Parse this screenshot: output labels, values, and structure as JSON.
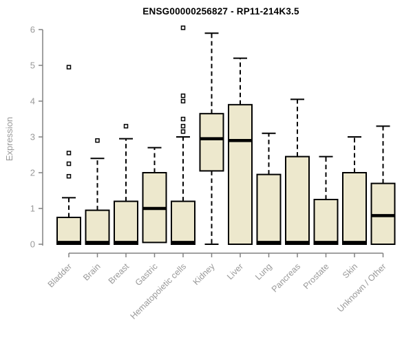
{
  "title": "ENSG00000256827 - RP11-214K3.5",
  "colors": {
    "background": "#ffffff",
    "box_fill": "#EDE8CD",
    "box_border": "#000000",
    "median": "#000000",
    "whisker": "#000000",
    "outlier_fill": "#ffffff",
    "outlier_border": "#000000",
    "axis": "#808080",
    "tick_label": "#999999",
    "title_color": "#000000"
  },
  "chart_data": {
    "type": "boxplot",
    "title": "ENSG00000256827 - RP11-214K3.5",
    "xlabel": "",
    "ylabel": "Expression",
    "ylim": [
      0,
      6
    ],
    "yticks": [
      0,
      1,
      2,
      3,
      4,
      5,
      6
    ],
    "grid": false,
    "legend": false,
    "categories": [
      "Bladder",
      "Brain",
      "Breast",
      "Gastric",
      "Hematopoietic cells",
      "Kidney",
      "Liver",
      "Lung",
      "Pancreas",
      "Prostate",
      "Skin",
      "Unknown / Other"
    ],
    "series": [
      {
        "name": "Bladder",
        "whisker_low": 0,
        "q1": 0,
        "median": 0.05,
        "q3": 0.75,
        "whisker_high": 1.3,
        "outliers": [
          4.95,
          2.55,
          2.25,
          1.9
        ]
      },
      {
        "name": "Brain",
        "whisker_low": 0,
        "q1": 0,
        "median": 0.05,
        "q3": 0.95,
        "whisker_high": 2.4,
        "outliers": [
          2.9
        ]
      },
      {
        "name": "Breast",
        "whisker_low": 0,
        "q1": 0,
        "median": 0.05,
        "q3": 1.2,
        "whisker_high": 2.95,
        "outliers": [
          3.3
        ]
      },
      {
        "name": "Gastric",
        "whisker_low": 0.05,
        "q1": 0.05,
        "median": 1.0,
        "q3": 2.0,
        "whisker_high": 2.7,
        "outliers": []
      },
      {
        "name": "Hematopoietic cells",
        "whisker_low": 0,
        "q1": 0,
        "median": 0.05,
        "q3": 1.2,
        "whisker_high": 3.0,
        "outliers": [
          6.05,
          4.15,
          4.0,
          3.5,
          3.3,
          3.15
        ]
      },
      {
        "name": "Kidney",
        "whisker_low": 0,
        "q1": 2.05,
        "median": 2.95,
        "q3": 3.65,
        "whisker_high": 5.9,
        "outliers": []
      },
      {
        "name": "Liver",
        "whisker_low": 0,
        "q1": 0,
        "median": 2.9,
        "q3": 3.9,
        "whisker_high": 5.2,
        "outliers": []
      },
      {
        "name": "Lung",
        "whisker_low": 0,
        "q1": 0,
        "median": 0.05,
        "q3": 1.95,
        "whisker_high": 3.1,
        "outliers": []
      },
      {
        "name": "Pancreas",
        "whisker_low": 0,
        "q1": 0,
        "median": 0.05,
        "q3": 2.45,
        "whisker_high": 4.05,
        "outliers": []
      },
      {
        "name": "Prostate",
        "whisker_low": 0,
        "q1": 0,
        "median": 0.05,
        "q3": 1.25,
        "whisker_high": 2.45,
        "outliers": []
      },
      {
        "name": "Skin",
        "whisker_low": 0,
        "q1": 0,
        "median": 0.05,
        "q3": 2.0,
        "whisker_high": 3.0,
        "outliers": []
      },
      {
        "name": "Unknown / Other",
        "whisker_low": 0,
        "q1": 0,
        "median": 0.8,
        "q3": 1.7,
        "whisker_high": 3.3,
        "outliers": []
      }
    ]
  }
}
